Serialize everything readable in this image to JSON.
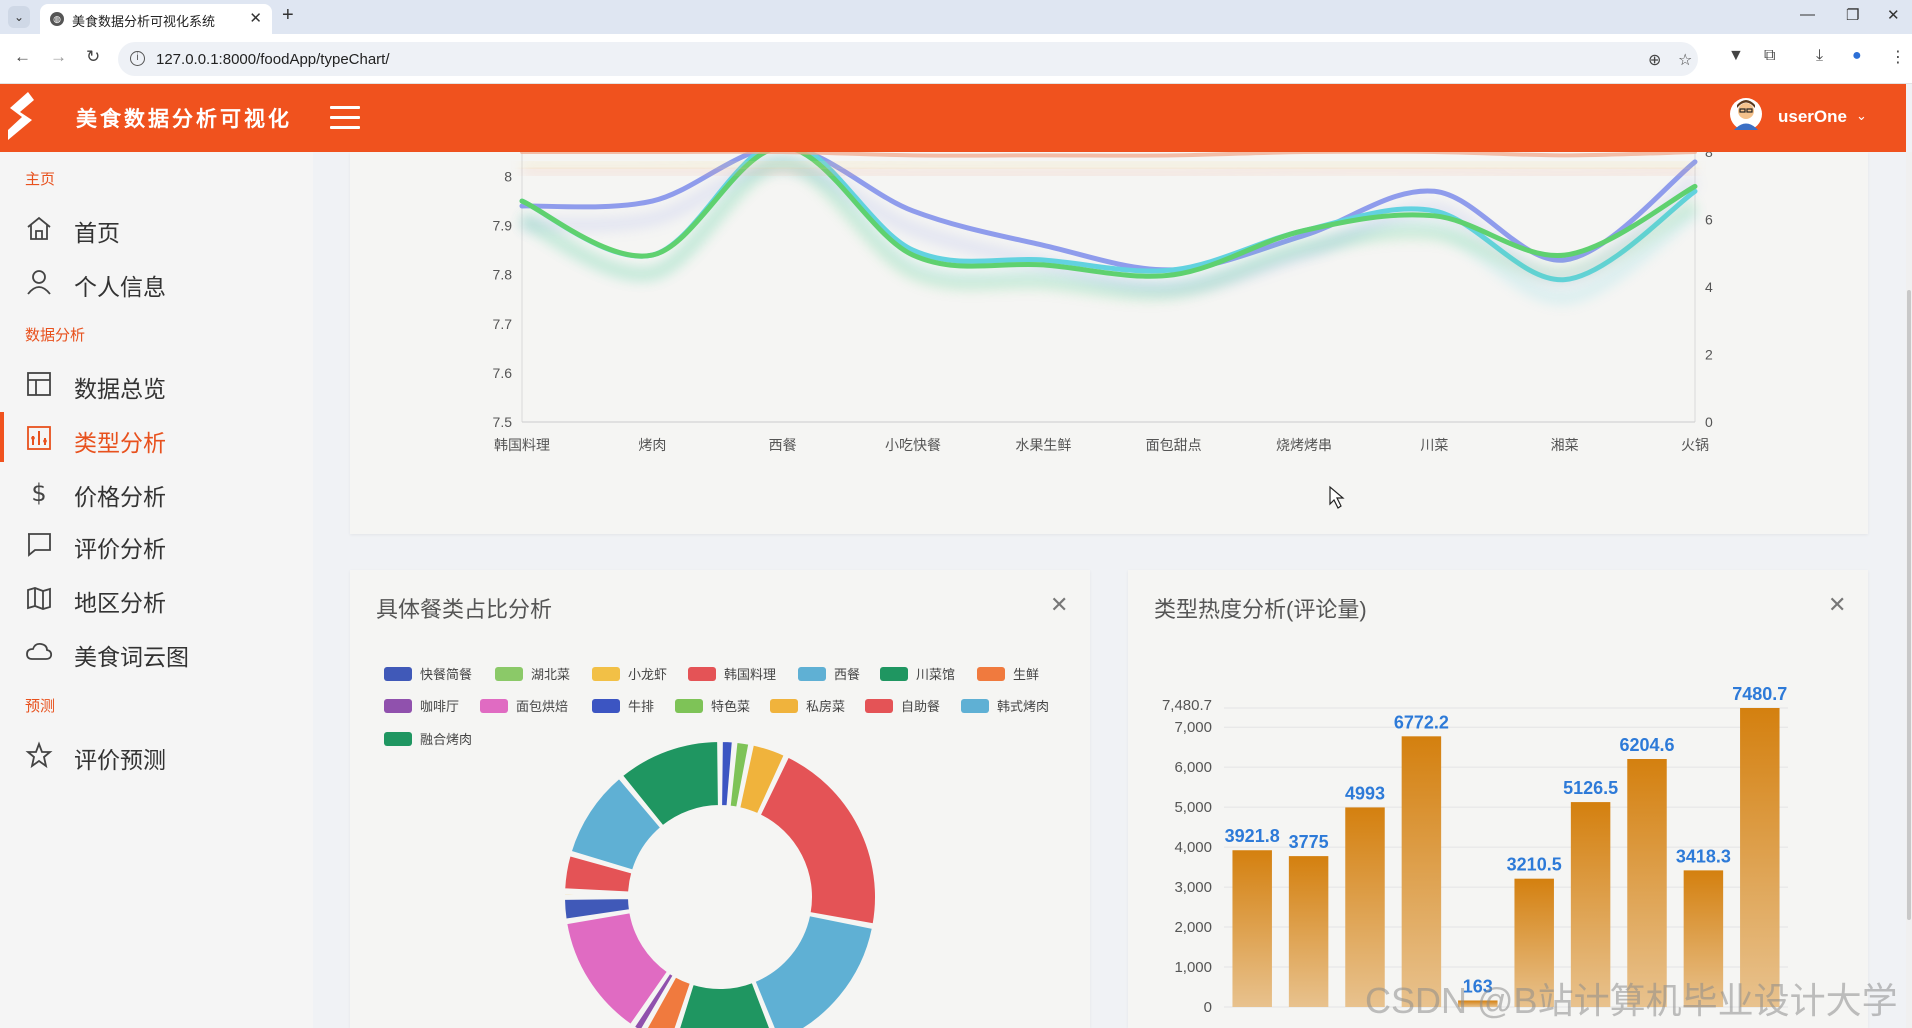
{
  "browser": {
    "tab_title": "美食数据分析可视化系统",
    "url": "127.0.0.1:8000/foodApp/typeChart/"
  },
  "header": {
    "app_title": "美食数据分析可视化",
    "user_name": "userOne"
  },
  "sidebar": {
    "sections": [
      {
        "label": "主页"
      },
      {
        "label": "数据分析"
      },
      {
        "label": "预测"
      }
    ],
    "items": [
      {
        "label": "首页",
        "icon": "home-icon"
      },
      {
        "label": "个人信息",
        "icon": "user-icon"
      },
      {
        "label": "数据总览",
        "icon": "layout-icon"
      },
      {
        "label": "类型分析",
        "icon": "chart-icon",
        "active": true
      },
      {
        "label": "价格分析",
        "icon": "dollar-icon"
      },
      {
        "label": "评价分析",
        "icon": "comment-icon"
      },
      {
        "label": "地区分析",
        "icon": "map-icon"
      },
      {
        "label": "美食词云图",
        "icon": "cloud-icon"
      },
      {
        "label": "评价预测",
        "icon": "star-icon"
      }
    ]
  },
  "panels": {
    "pie_title": "具体餐类占比分析",
    "bar_title": "类型热度分析(评论量)"
  },
  "watermark": "CSDN @B站计算机毕业设计大学",
  "chart_data": [
    {
      "type": "line",
      "title": "",
      "categories": [
        "韩国料理",
        "烤肉",
        "西餐",
        "小吃快餐",
        "水果生鲜",
        "面包甜点",
        "烧烤烤串",
        "川菜",
        "湘菜",
        "火锅"
      ],
      "y_left": {
        "ticks": [
          "7.5",
          "7.6",
          "7.7",
          "7.8",
          "7.9",
          "8"
        ],
        "range": [
          7.5,
          8.05
        ]
      },
      "y_right": {
        "ticks": [
          "0",
          "2",
          "4",
          "6",
          "8"
        ],
        "range": [
          0,
          8
        ]
      },
      "series": [
        {
          "name": "series-blue",
          "color": "#8f9cec",
          "axis": "left",
          "values": [
            7.94,
            7.95,
            8.06,
            7.93,
            7.86,
            7.81,
            7.88,
            7.97,
            7.83,
            8.03
          ]
        },
        {
          "name": "series-cyan",
          "color": "#62d2e0",
          "axis": "left",
          "values": [
            7.95,
            7.84,
            8.07,
            7.85,
            7.83,
            7.81,
            7.89,
            7.93,
            7.79,
            7.97
          ]
        },
        {
          "name": "series-green",
          "color": "#5fd16f",
          "axis": "left",
          "values": [
            7.95,
            7.84,
            8.06,
            7.84,
            7.82,
            7.8,
            7.89,
            7.92,
            7.84,
            7.98
          ]
        },
        {
          "name": "series-orange",
          "color": "#f0a98e",
          "axis": "right",
          "values": [
            8.0,
            8.0,
            8.0,
            7.9,
            7.9,
            7.9,
            8.0,
            8.0,
            7.9,
            8.0
          ]
        },
        {
          "name": "series-yellow",
          "color": "#f3d78a",
          "axis": "right",
          "values": [
            8.1,
            8.1,
            8.2,
            8.1,
            8.1,
            8.1,
            8.1,
            8.1,
            8.1,
            8.1
          ]
        }
      ]
    },
    {
      "type": "pie",
      "title": "具体餐类占比分析",
      "legend": [
        {
          "name": "快餐简餐",
          "color": "#4059b8"
        },
        {
          "name": "湖北菜",
          "color": "#8bc968"
        },
        {
          "name": "小龙虾",
          "color": "#f2c046"
        },
        {
          "name": "韩国料理",
          "color": "#e45356"
        },
        {
          "name": "西餐",
          "color": "#5fb0d4"
        },
        {
          "name": "川菜馆",
          "color": "#1f9661"
        },
        {
          "name": "生鲜",
          "color": "#f07a3e"
        },
        {
          "name": "咖啡厅",
          "color": "#9051ad"
        },
        {
          "name": "面包烘焙",
          "color": "#e06bc2"
        },
        {
          "name": "牛排",
          "color": "#3c55c2"
        },
        {
          "name": "特色菜",
          "color": "#7ec357"
        },
        {
          "name": "私房菜",
          "color": "#f0b33c"
        },
        {
          "name": "自助餐",
          "color": "#e45356"
        },
        {
          "name": "韩式烤肉",
          "color": "#5fb0d4"
        },
        {
          "name": "融合烤肉",
          "color": "#1f9661"
        }
      ],
      "visible_slices": [
        {
          "color": "#3c55c2",
          "start": 0,
          "end": 1.5
        },
        {
          "color": "#7ec357",
          "start": 1.5,
          "end": 3.2
        },
        {
          "color": "#f0b33c",
          "start": 3.2,
          "end": 7.0
        },
        {
          "color": "#e45356",
          "start": 7.0,
          "end": 28.0
        },
        {
          "color": "#5fb0d4",
          "start": 28.0,
          "end": 44.0
        },
        {
          "color": "#1f9661",
          "start": 44.0,
          "end": 55.0
        },
        {
          "color": "#f07a3e",
          "start": 55.0,
          "end": 58.3
        },
        {
          "color": "#9051ad",
          "start": 58.3,
          "end": 59.5
        },
        {
          "color": "#e06bc2",
          "start": 59.5,
          "end": 72.5
        },
        {
          "color": "#4059b8",
          "start": 72.5,
          "end": 75.0
        },
        {
          "color": "#f2c046",
          "start": 75.0,
          "end": 75.6
        },
        {
          "color": "#e45356",
          "start": 75.6,
          "end": 79.5
        },
        {
          "color": "#5fb0d4",
          "start": 79.5,
          "end": 89.0
        },
        {
          "color": "#1f9661",
          "start": 89.0,
          "end": 100.0
        }
      ]
    },
    {
      "type": "bar",
      "title": "类型热度分析(评论量)",
      "values": [
        3921.8,
        3775,
        4993,
        6772.2,
        163,
        3210.5,
        5126.5,
        6204.6,
        3418.3,
        7480.7
      ],
      "labels": [
        "3921.8",
        "3775",
        "4993",
        "6772.2",
        "163",
        "3210.5",
        "5126.5",
        "6204.6",
        "3418.3",
        "7480.7"
      ],
      "y_ticks": [
        "0",
        "1,000",
        "2,000",
        "3,000",
        "4,000",
        "5,000",
        "6,000",
        "7,000"
      ],
      "y_max_label": "7,480.7",
      "ylim": [
        0,
        7480.7
      ],
      "color_top": "#d4800f",
      "color_bottom": "#e8c28e",
      "label_color": "#2d7ad8"
    }
  ]
}
